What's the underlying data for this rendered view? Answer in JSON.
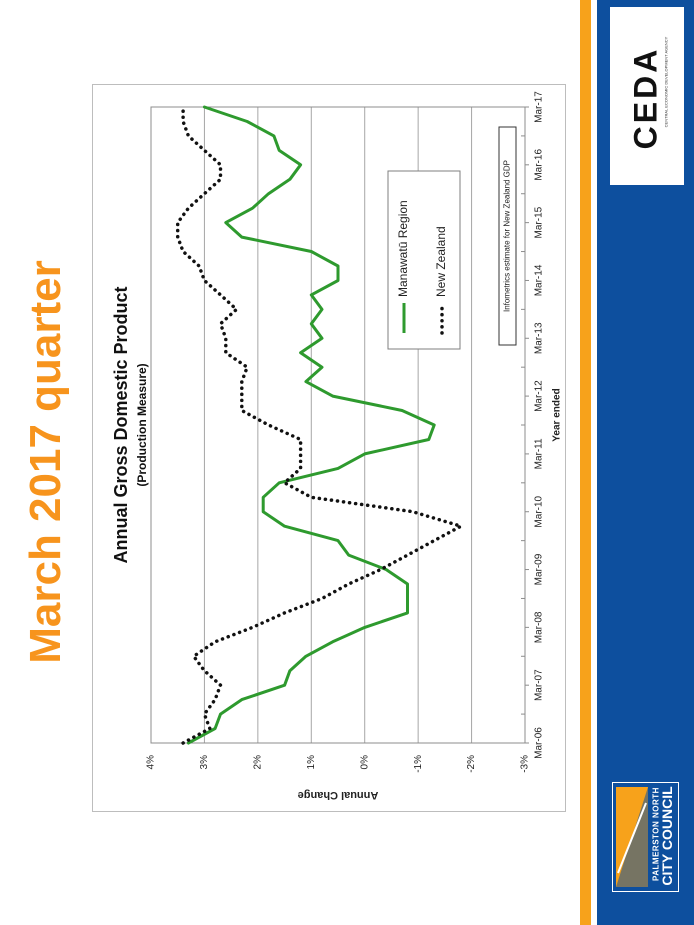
{
  "slide": {
    "title": "March 2017 quarter"
  },
  "chart_data": {
    "type": "line",
    "title": "Annual Gross Domestic Product",
    "subtitle": "(Production Measure)",
    "xlabel": "Year ended",
    "ylabel": "Annual Change",
    "x_ticks": [
      "Mar-06",
      "Mar-07",
      "Mar-08",
      "Mar-09",
      "Mar-10",
      "Mar-11",
      "Mar-12",
      "Mar-13",
      "Mar-14",
      "Mar-15",
      "Mar-16",
      "Mar-17"
    ],
    "y_ticks": [
      "4%",
      "3%",
      "2%",
      "1%",
      "0%",
      "-1%",
      "-2%",
      "-3%"
    ],
    "ylim": [
      -3,
      4
    ],
    "grid": true,
    "legend_position": "right",
    "x": [
      "Mar-06",
      "Jun-06",
      "Sep-06",
      "Dec-06",
      "Mar-07",
      "Jun-07",
      "Sep-07",
      "Dec-07",
      "Mar-08",
      "Jun-08",
      "Sep-08",
      "Dec-08",
      "Mar-09",
      "Jun-09",
      "Sep-09",
      "Dec-09",
      "Mar-10",
      "Jun-10",
      "Sep-10",
      "Dec-10",
      "Mar-11",
      "Jun-11",
      "Sep-11",
      "Dec-11",
      "Mar-12",
      "Jun-12",
      "Sep-12",
      "Dec-12",
      "Mar-13",
      "Jun-13",
      "Sep-13",
      "Dec-13",
      "Mar-14",
      "Jun-14",
      "Sep-14",
      "Dec-14",
      "Mar-15",
      "Jun-15",
      "Sep-15",
      "Dec-15",
      "Mar-16",
      "Jun-16",
      "Sep-16",
      "Dec-16",
      "Mar-17"
    ],
    "series": [
      {
        "name": "Manawatū Region",
        "color": "#2e9a2e",
        "style": "solid",
        "values": [
          3.3,
          2.8,
          2.7,
          2.3,
          1.5,
          1.4,
          1.1,
          0.6,
          0.0,
          -0.8,
          -0.8,
          -0.8,
          -0.4,
          0.3,
          0.5,
          1.5,
          1.9,
          1.9,
          1.6,
          0.5,
          0.0,
          -1.2,
          -1.3,
          -0.7,
          0.6,
          1.1,
          0.8,
          1.2,
          0.8,
          1.0,
          0.8,
          1.0,
          0.5,
          0.5,
          1.0,
          2.3,
          2.6,
          2.1,
          1.8,
          1.4,
          1.2,
          1.6,
          1.7,
          2.2,
          3.0
        ]
      },
      {
        "name": "New Zealand",
        "color": "#111111",
        "style": "dotted",
        "values": [
          3.4,
          2.9,
          3.0,
          2.8,
          2.7,
          3.0,
          3.2,
          2.8,
          2.1,
          1.5,
          0.8,
          0.3,
          -0.3,
          -0.8,
          -1.3,
          -1.8,
          -0.9,
          1.0,
          1.5,
          1.2,
          1.2,
          1.2,
          1.8,
          2.3,
          2.3,
          2.3,
          2.2,
          2.6,
          2.6,
          2.7,
          2.4,
          2.7,
          3.0,
          3.1,
          3.4,
          3.5,
          3.5,
          3.3,
          3.0,
          2.7,
          2.7,
          3.0,
          3.3,
          3.4,
          3.4
        ]
      }
    ],
    "annotation": "Infometrics estimate for New Zealand GDP"
  },
  "branding": {
    "ceda_name": "CEDA",
    "ceda_subtitle": "CENTRAL ECONOMIC DEVELOPMENT AGENCY",
    "council_line1": "PALMERSTON NORTH",
    "council_line2": "CITY COUNCIL"
  }
}
